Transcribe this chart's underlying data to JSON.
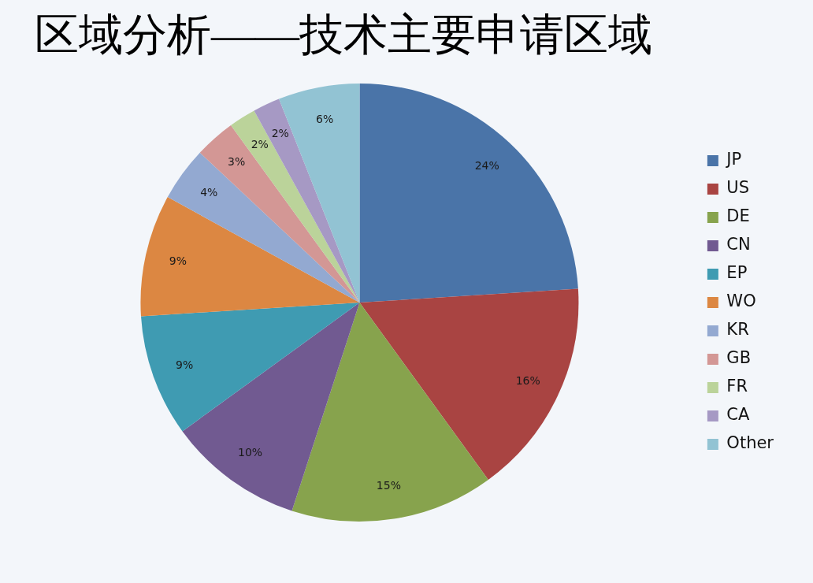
{
  "chart_data": {
    "type": "pie",
    "title": "区域分析——技术主要申请区域",
    "categories": [
      "JP",
      "US",
      "DE",
      "CN",
      "EP",
      "WO",
      "KR",
      "GB",
      "FR",
      "CA",
      "Other"
    ],
    "values": [
      24,
      16,
      15,
      10,
      9,
      9,
      4,
      3,
      2,
      2,
      6
    ],
    "value_labels": [
      "24%",
      "16%",
      "15%",
      "10%",
      "9%",
      "9%",
      "4%",
      "3%",
      "2%",
      "2%",
      "6%"
    ],
    "colors": [
      "#4a74a8",
      "#a94442",
      "#87a34d",
      "#715a91",
      "#3f9bb2",
      "#dc8742",
      "#93a9d1",
      "#d39795",
      "#bbd39a",
      "#a699c4",
      "#92c3d3"
    ],
    "legend": "right"
  }
}
